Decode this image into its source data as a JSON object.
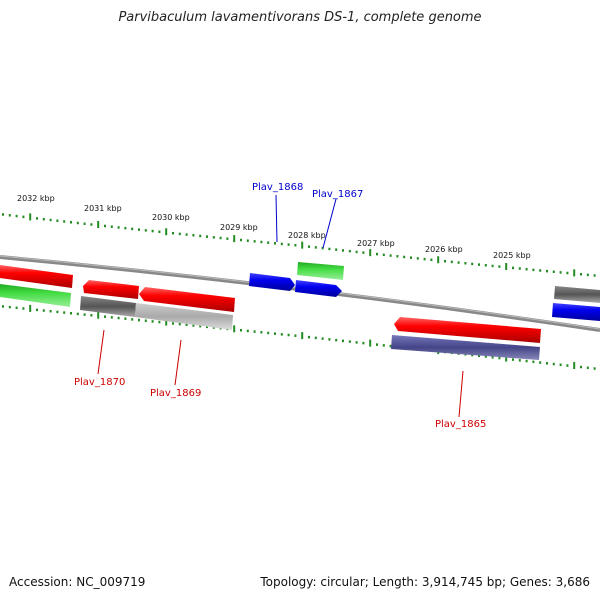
{
  "title": "Parvibaculum lavamentivorans DS-1, complete genome",
  "footer": {
    "accession": "Accession: NC_009719",
    "summary": "Topology: circular; Length: 3,914,745 bp; Genes: 3,686"
  },
  "colors": {
    "red": "#ff0000",
    "green": "#33cc33",
    "blue": "#0000ee",
    "darkgray": "#666666",
    "lightgray": "#bbbbbb",
    "purple": "#555599",
    "tick": "#228b22",
    "backbone": "#888888",
    "label_blue": "#0000cc",
    "label_red": "#cc0000"
  },
  "kbp_labels": [
    "2032 kbp",
    "2031 kbp",
    "2030 kbp",
    "2029 kbp",
    "2028 kbp",
    "2027 kbp",
    "2026 kbp",
    "2025 kbp"
  ],
  "gene_labels": [
    {
      "text": "Plav_1868",
      "color": "label_blue"
    },
    {
      "text": "Plav_1867",
      "color": "label_blue"
    },
    {
      "text": "Plav_1870",
      "color": "label_red"
    },
    {
      "text": "Plav_1869",
      "color": "label_red"
    },
    {
      "text": "Plav_1865",
      "color": "label_red"
    }
  ]
}
